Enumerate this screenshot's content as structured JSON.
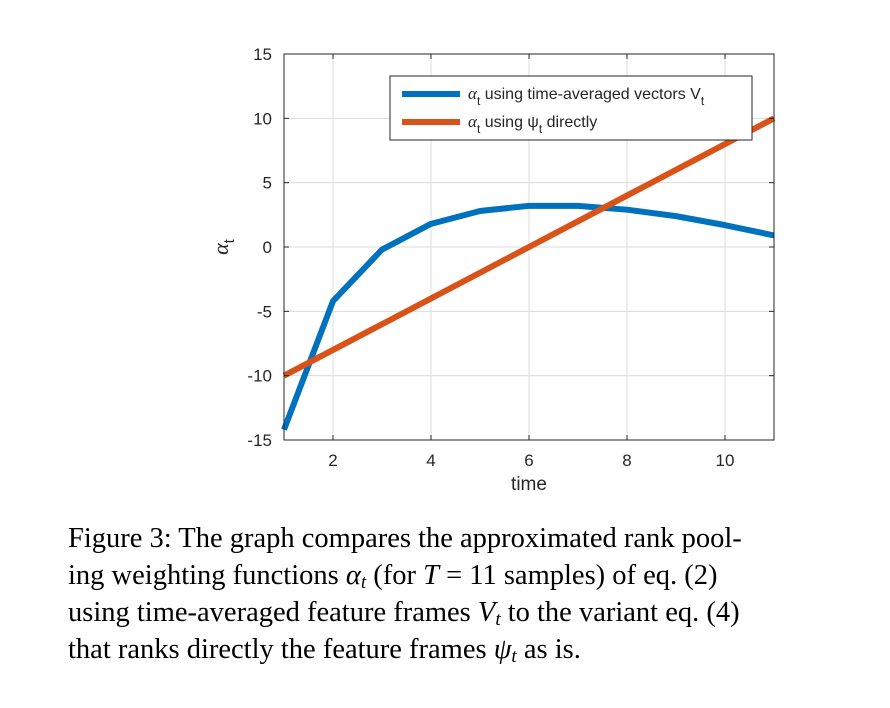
{
  "chart_data": {
    "type": "line",
    "xlabel": "time",
    "ylabel": "α",
    "ylabel_sub": "t",
    "xlim": [
      1,
      11
    ],
    "ylim": [
      -15,
      15
    ],
    "xticks": [
      2,
      4,
      6,
      8,
      10
    ],
    "yticks": [
      -15,
      -10,
      -5,
      0,
      5,
      10,
      15
    ],
    "xtick_labels": [
      "2",
      "4",
      "6",
      "8",
      "10"
    ],
    "ytick_labels": [
      "-15",
      "-10",
      "-5",
      "0",
      "5",
      "10",
      "15"
    ],
    "grid": true,
    "legend_position": "top-right",
    "series": [
      {
        "name": "α_t using time-averaged vectors V_t",
        "legend": {
          "a": "α",
          "a_sub": "t",
          "mid": " using time-averaged vectors V",
          "end_sub": "t",
          "tail": ""
        },
        "color": "#0072BD",
        "x": [
          1,
          2,
          3,
          4,
          5,
          6,
          7,
          8,
          9,
          10,
          11
        ],
        "y": [
          -14.2,
          -4.2,
          -0.2,
          1.8,
          2.8,
          3.2,
          3.2,
          2.9,
          2.4,
          1.7,
          0.9
        ]
      },
      {
        "name": "α_t using ψ_t directly",
        "legend": {
          "a": "α",
          "a_sub": "t",
          "mid": " using ψ",
          "end_sub": "t",
          "tail": " directly"
        },
        "color": "#D95319",
        "x": [
          1,
          11
        ],
        "y": [
          -10,
          10
        ]
      }
    ]
  },
  "caption": {
    "line1": "Figure 3: The graph compares the approximated rank pool-",
    "line2_a": "ing weighting functions ",
    "alpha": "α",
    "t": "t",
    "line2_b": " (for ",
    "T": "T",
    "line2_c": " = 11 samples) of eq. (2)",
    "line3_a": "using time-averaged feature frames ",
    "V": "V",
    "line3_b": " to the variant eq. (4)",
    "line4_a": "that ranks directly the feature frames ",
    "psi": "ψ",
    "line4_b": " as is."
  }
}
